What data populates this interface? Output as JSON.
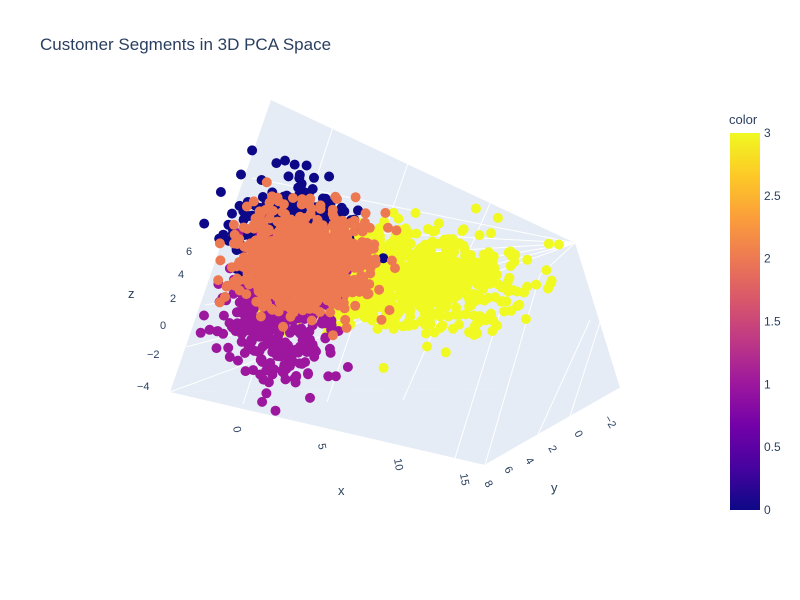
{
  "chart_data": {
    "type": "scatter",
    "title": "Customer Segments in 3D PCA Space",
    "xlabel": "x",
    "ylabel": "y",
    "zlabel": "z",
    "x_ticks": [
      "0",
      "5",
      "10",
      "15"
    ],
    "y_ticks": [
      "−2",
      "0",
      "2",
      "4",
      "6",
      "8"
    ],
    "z_ticks": [
      "−4",
      "−2",
      "0",
      "2",
      "4",
      "6"
    ],
    "colorbar": {
      "title": "color",
      "ticks": [
        "0",
        "0.5",
        "1",
        "1.5",
        "2",
        "2.5",
        "3"
      ],
      "range": [
        0,
        3
      ],
      "colorscale": [
        "#0d0887",
        "#46039f",
        "#7201a8",
        "#9c179e",
        "#bd3786",
        "#d8576b",
        "#ed7953",
        "#fb9f3a",
        "#fdca26",
        "#f0f921"
      ]
    },
    "segments": [
      {
        "color_value": 0,
        "color": "#0d0887"
      },
      {
        "color_value": 1,
        "color": "#9c179e"
      },
      {
        "color_value": 2,
        "color": "#ed7953"
      },
      {
        "color_value": 3,
        "color": "#f0f921"
      }
    ],
    "scene_background": "#e5ecf6",
    "grid_color": "#ffffff"
  }
}
